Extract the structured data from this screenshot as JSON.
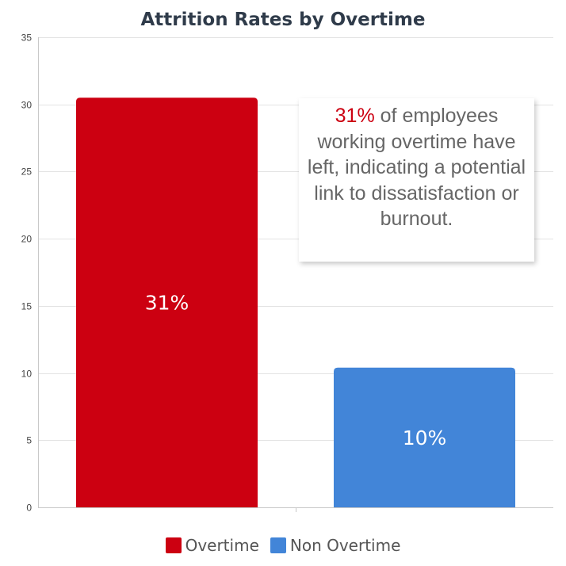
{
  "chart_data": {
    "type": "bar",
    "title": "Attrition Rates by Overtime",
    "xlabel": "",
    "ylabel": "",
    "categories": [
      "Overtime",
      "Non Overtime"
    ],
    "values": [
      30.5,
      10.4
    ],
    "data_labels": [
      "31%",
      "10%"
    ],
    "colors": [
      "#cc0011",
      "#4285d8"
    ],
    "ylim": [
      0,
      35
    ],
    "yticks": [
      0,
      5,
      10,
      15,
      20,
      25,
      30,
      35
    ],
    "grid": true,
    "legend": {
      "position": "bottom",
      "entries": [
        "Overtime",
        "Non Overtime"
      ]
    }
  },
  "annotation": {
    "highlight": "31%",
    "text": " of employees working overtime have left, indicating a potential link to dissatisfaction or burnout."
  }
}
